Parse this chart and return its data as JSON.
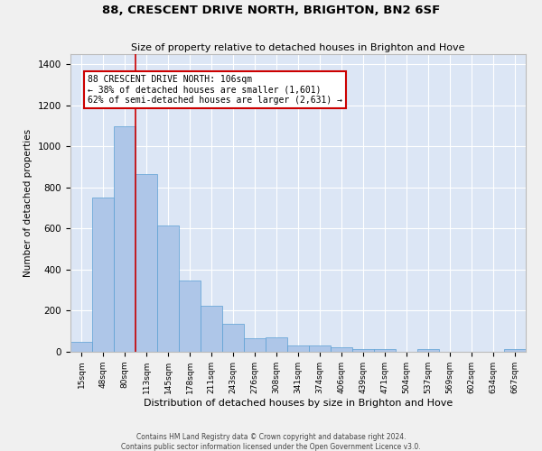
{
  "title": "88, CRESCENT DRIVE NORTH, BRIGHTON, BN2 6SF",
  "subtitle": "Size of property relative to detached houses in Brighton and Hove",
  "xlabel": "Distribution of detached houses by size in Brighton and Hove",
  "ylabel": "Number of detached properties",
  "footnote1": "Contains HM Land Registry data © Crown copyright and database right 2024.",
  "footnote2": "Contains public sector information licensed under the Open Government Licence v3.0.",
  "bar_labels": [
    "15sqm",
    "48sqm",
    "80sqm",
    "113sqm",
    "145sqm",
    "178sqm",
    "211sqm",
    "243sqm",
    "276sqm",
    "308sqm",
    "341sqm",
    "374sqm",
    "406sqm",
    "439sqm",
    "471sqm",
    "504sqm",
    "537sqm",
    "569sqm",
    "602sqm",
    "634sqm",
    "667sqm"
  ],
  "bar_values": [
    50,
    750,
    1100,
    865,
    615,
    345,
    225,
    135,
    65,
    70,
    30,
    30,
    22,
    15,
    15,
    0,
    12,
    0,
    0,
    0,
    12
  ],
  "bar_color": "#aec6e8",
  "bar_edge_color": "#5a9fd4",
  "background_color": "#dce6f5",
  "grid_color": "#ffffff",
  "fig_background": "#f0f0f0",
  "ylim": [
    0,
    1450
  ],
  "annotation_text": "88 CRESCENT DRIVE NORTH: 106sqm\n← 38% of detached houses are smaller (1,601)\n62% of semi-detached houses are larger (2,631) →",
  "vline_x_index": 2.5,
  "red_line_color": "#cc0000",
  "annotation_box_color": "#ffffff",
  "annotation_box_edge_color": "#cc0000"
}
